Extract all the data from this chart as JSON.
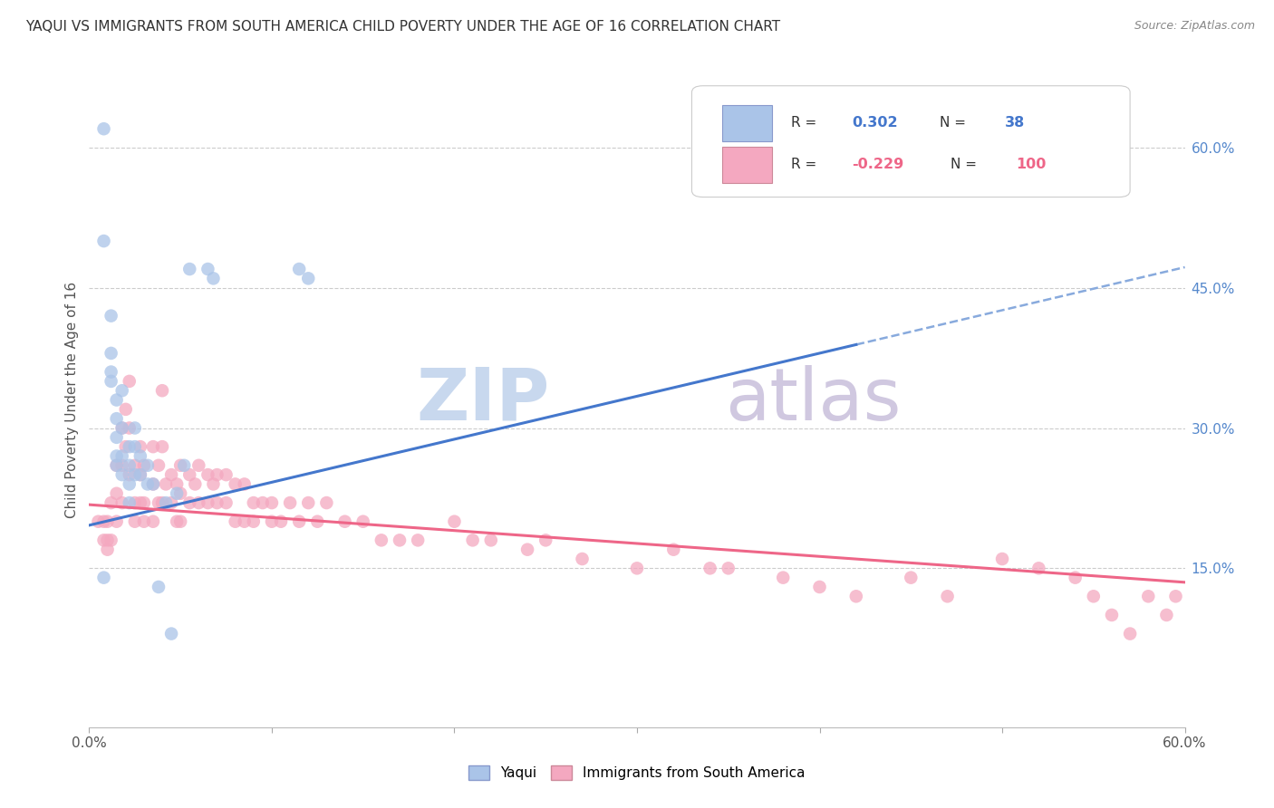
{
  "title": "YAQUI VS IMMIGRANTS FROM SOUTH AMERICA CHILD POVERTY UNDER THE AGE OF 16 CORRELATION CHART",
  "source": "Source: ZipAtlas.com",
  "ylabel": "Child Poverty Under the Age of 16",
  "xlim": [
    0.0,
    0.6
  ],
  "ylim": [
    -0.02,
    0.68
  ],
  "ytick_labels_right": [
    "60.0%",
    "45.0%",
    "30.0%",
    "15.0%"
  ],
  "ytick_vals_right": [
    0.6,
    0.45,
    0.3,
    0.15
  ],
  "blue_R": 0.302,
  "blue_N": 38,
  "pink_R": -0.229,
  "pink_N": 100,
  "blue_color": "#aac4e8",
  "pink_color": "#f4a8c0",
  "trendline_blue": "#4477cc",
  "trendline_pink": "#ee6688",
  "trendline_dashed_color": "#88aadd",
  "background_color": "#ffffff",
  "grid_color": "#cccccc",
  "watermark_zip": "ZIP",
  "watermark_atlas": "atlas",
  "watermark_color_zip": "#c8d8ee",
  "watermark_color_atlas": "#d0c8e0",
  "blue_trendline_x0": 0.0,
  "blue_trendline_y0": 0.196,
  "blue_trendline_x1": 0.6,
  "blue_trendline_y1": 0.472,
  "pink_trendline_x0": 0.0,
  "pink_trendline_y0": 0.218,
  "pink_trendline_x1": 0.6,
  "pink_trendline_y1": 0.135,
  "blue_scatter_x": [
    0.008,
    0.008,
    0.008,
    0.012,
    0.012,
    0.012,
    0.012,
    0.015,
    0.015,
    0.015,
    0.015,
    0.015,
    0.018,
    0.018,
    0.018,
    0.018,
    0.022,
    0.022,
    0.022,
    0.022,
    0.025,
    0.025,
    0.025,
    0.028,
    0.028,
    0.032,
    0.032,
    0.035,
    0.038,
    0.042,
    0.045,
    0.048,
    0.052,
    0.055,
    0.065,
    0.068,
    0.12,
    0.115
  ],
  "blue_scatter_y": [
    0.62,
    0.5,
    0.14,
    0.42,
    0.38,
    0.36,
    0.35,
    0.33,
    0.31,
    0.29,
    0.27,
    0.26,
    0.34,
    0.3,
    0.27,
    0.25,
    0.28,
    0.26,
    0.24,
    0.22,
    0.3,
    0.28,
    0.25,
    0.27,
    0.25,
    0.24,
    0.26,
    0.24,
    0.13,
    0.22,
    0.08,
    0.23,
    0.26,
    0.47,
    0.47,
    0.46,
    0.46,
    0.47
  ],
  "pink_scatter_x": [
    0.005,
    0.008,
    0.008,
    0.01,
    0.01,
    0.01,
    0.012,
    0.012,
    0.015,
    0.015,
    0.015,
    0.018,
    0.018,
    0.018,
    0.02,
    0.02,
    0.022,
    0.022,
    0.022,
    0.025,
    0.025,
    0.025,
    0.028,
    0.028,
    0.028,
    0.03,
    0.03,
    0.03,
    0.035,
    0.035,
    0.035,
    0.038,
    0.038,
    0.04,
    0.04,
    0.04,
    0.042,
    0.045,
    0.045,
    0.048,
    0.048,
    0.05,
    0.05,
    0.05,
    0.055,
    0.055,
    0.058,
    0.06,
    0.06,
    0.065,
    0.065,
    0.068,
    0.07,
    0.07,
    0.075,
    0.075,
    0.08,
    0.08,
    0.085,
    0.085,
    0.09,
    0.09,
    0.095,
    0.1,
    0.1,
    0.105,
    0.11,
    0.115,
    0.12,
    0.125,
    0.13,
    0.14,
    0.15,
    0.16,
    0.17,
    0.18,
    0.2,
    0.21,
    0.22,
    0.24,
    0.25,
    0.27,
    0.3,
    0.32,
    0.34,
    0.35,
    0.38,
    0.4,
    0.42,
    0.45,
    0.47,
    0.5,
    0.52,
    0.54,
    0.55,
    0.56,
    0.57,
    0.58,
    0.59,
    0.595
  ],
  "pink_scatter_y": [
    0.2,
    0.2,
    0.18,
    0.2,
    0.18,
    0.17,
    0.22,
    0.18,
    0.26,
    0.23,
    0.2,
    0.3,
    0.26,
    0.22,
    0.32,
    0.28,
    0.35,
    0.3,
    0.25,
    0.26,
    0.22,
    0.2,
    0.28,
    0.25,
    0.22,
    0.26,
    0.22,
    0.2,
    0.28,
    0.24,
    0.2,
    0.26,
    0.22,
    0.34,
    0.28,
    0.22,
    0.24,
    0.25,
    0.22,
    0.24,
    0.2,
    0.26,
    0.23,
    0.2,
    0.25,
    0.22,
    0.24,
    0.26,
    0.22,
    0.25,
    0.22,
    0.24,
    0.25,
    0.22,
    0.25,
    0.22,
    0.24,
    0.2,
    0.24,
    0.2,
    0.22,
    0.2,
    0.22,
    0.22,
    0.2,
    0.2,
    0.22,
    0.2,
    0.22,
    0.2,
    0.22,
    0.2,
    0.2,
    0.18,
    0.18,
    0.18,
    0.2,
    0.18,
    0.18,
    0.17,
    0.18,
    0.16,
    0.15,
    0.17,
    0.15,
    0.15,
    0.14,
    0.13,
    0.12,
    0.14,
    0.12,
    0.16,
    0.15,
    0.14,
    0.12,
    0.1,
    0.08,
    0.12,
    0.1,
    0.12
  ]
}
